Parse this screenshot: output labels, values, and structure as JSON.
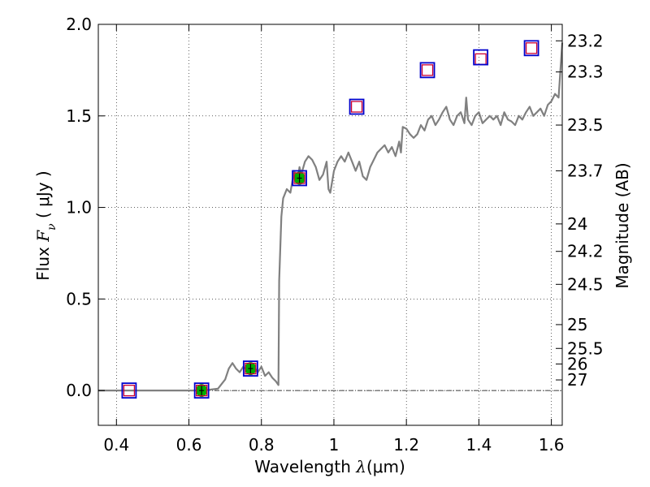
{
  "chart_data": {
    "type": "scatter",
    "xlabel_text": "Wavelength  ",
    "xlabel_symbol": "λ",
    "xlabel_unit": "(μm)",
    "ylabel_text": "Flux  ",
    "ylabel_symbol": "F",
    "ylabel_sub": "ν",
    "ylabel_unit": "  ( μJy )",
    "y2label": "Magnitude (AB)",
    "xlim": [
      0.35,
      1.63
    ],
    "ylim": [
      -0.19,
      2.0
    ],
    "xticks": [
      0.4,
      0.6,
      0.8,
      1.0,
      1.2,
      1.4,
      1.6
    ],
    "xtick_labels": [
      "0.4",
      "0.6",
      "0.8",
      "1",
      "1.2",
      "1.4",
      "1.6"
    ],
    "yticks": [
      0.0,
      0.5,
      1.0,
      1.5,
      2.0
    ],
    "ytick_labels": [
      "0.0",
      "0.5",
      "1.0",
      "1.5",
      "2.0"
    ],
    "mag_ticks": [
      {
        "label": "23.2",
        "flux": 1.91
      },
      {
        "label": "23.3",
        "flux": 1.74
      },
      {
        "label": "23.5",
        "flux": 1.45
      },
      {
        "label": "23.7",
        "flux": 1.2
      },
      {
        "label": "24",
        "flux": 0.91
      },
      {
        "label": "24.2",
        "flux": 0.76
      },
      {
        "label": "24.5",
        "flux": 0.58
      },
      {
        "label": "25",
        "flux": 0.36
      },
      {
        "label": "25.5",
        "flux": 0.23
      },
      {
        "label": "26",
        "flux": 0.145
      },
      {
        "label": "27",
        "flux": 0.058
      }
    ],
    "grid": true,
    "zero_line": true,
    "model_spectrum": {
      "color": "#808080",
      "x": [
        0.35,
        0.44,
        0.55,
        0.64,
        0.68,
        0.7,
        0.71,
        0.72,
        0.73,
        0.74,
        0.75,
        0.76,
        0.77,
        0.78,
        0.79,
        0.8,
        0.81,
        0.82,
        0.83,
        0.84,
        0.847,
        0.849,
        0.855,
        0.86,
        0.87,
        0.88,
        0.89,
        0.9,
        0.905,
        0.91,
        0.92,
        0.93,
        0.94,
        0.95,
        0.96,
        0.97,
        0.98,
        0.985,
        0.99,
        1.0,
        1.01,
        1.02,
        1.03,
        1.04,
        1.05,
        1.06,
        1.07,
        1.08,
        1.09,
        1.1,
        1.12,
        1.14,
        1.15,
        1.16,
        1.17,
        1.18,
        1.185,
        1.19,
        1.2,
        1.21,
        1.22,
        1.23,
        1.24,
        1.25,
        1.26,
        1.27,
        1.28,
        1.29,
        1.3,
        1.31,
        1.32,
        1.33,
        1.34,
        1.35,
        1.36,
        1.365,
        1.37,
        1.38,
        1.39,
        1.4,
        1.41,
        1.42,
        1.43,
        1.44,
        1.45,
        1.46,
        1.47,
        1.48,
        1.49,
        1.5,
        1.51,
        1.52,
        1.53,
        1.54,
        1.55,
        1.56,
        1.57,
        1.58,
        1.59,
        1.6,
        1.61,
        1.62,
        1.63
      ],
      "y": [
        0.0,
        0.0,
        0.0,
        0.0,
        0.01,
        0.06,
        0.12,
        0.15,
        0.12,
        0.1,
        0.13,
        0.11,
        0.14,
        0.13,
        0.1,
        0.13,
        0.08,
        0.1,
        0.07,
        0.05,
        0.03,
        0.6,
        0.95,
        1.05,
        1.1,
        1.08,
        1.2,
        1.15,
        1.22,
        1.18,
        1.25,
        1.28,
        1.26,
        1.22,
        1.15,
        1.18,
        1.25,
        1.1,
        1.08,
        1.2,
        1.25,
        1.28,
        1.25,
        1.3,
        1.25,
        1.2,
        1.25,
        1.17,
        1.15,
        1.22,
        1.3,
        1.34,
        1.3,
        1.33,
        1.28,
        1.36,
        1.3,
        1.44,
        1.43,
        1.4,
        1.38,
        1.4,
        1.45,
        1.42,
        1.48,
        1.5,
        1.45,
        1.48,
        1.52,
        1.55,
        1.48,
        1.45,
        1.5,
        1.52,
        1.46,
        1.6,
        1.48,
        1.45,
        1.5,
        1.52,
        1.46,
        1.48,
        1.5,
        1.48,
        1.5,
        1.45,
        1.52,
        1.48,
        1.47,
        1.45,
        1.5,
        1.48,
        1.52,
        1.55,
        1.5,
        1.52,
        1.54,
        1.5,
        1.56,
        1.58,
        1.62,
        1.6,
        1.9
      ]
    },
    "observed": {
      "x": [
        0.435,
        0.635,
        0.77,
        0.905,
        1.063,
        1.258,
        1.405,
        1.545
      ],
      "y": [
        0.0,
        0.0,
        0.12,
        1.16,
        1.55,
        1.75,
        1.81,
        1.87
      ],
      "green_fill": [
        false,
        true,
        true,
        true,
        false,
        false,
        false,
        false
      ]
    },
    "model_photometry": {
      "x": [
        0.435,
        0.635,
        0.77,
        0.905,
        1.063,
        1.258,
        1.405,
        1.545
      ],
      "y": [
        0.0,
        0.0,
        0.12,
        1.16,
        1.55,
        1.75,
        1.82,
        1.87
      ]
    },
    "colors": {
      "model_box": "#0000cc",
      "obs_box": "#cc0033",
      "obs_fill": "#00aa00",
      "spectrum": "#808080"
    }
  }
}
